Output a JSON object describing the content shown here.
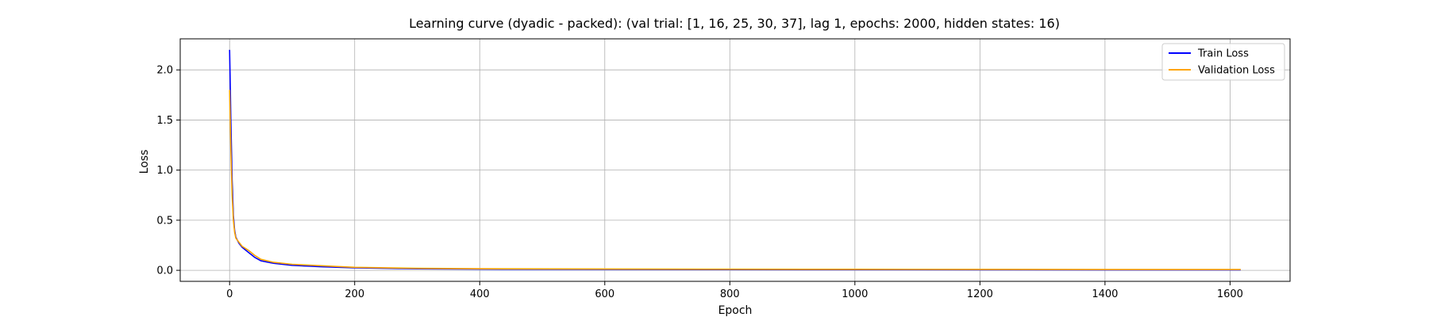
{
  "chart_data": {
    "type": "line",
    "title": "Learning curve (dyadic - packed): (val trial: [1, 16, 25, 30, 37], lag 1, epochs: 2000, hidden states: 16)",
    "xlabel": "Epoch",
    "ylabel": "Loss",
    "xlim": [
      -79,
      1696
    ],
    "ylim": [
      -0.11,
      2.31
    ],
    "xticks": [
      0,
      200,
      400,
      600,
      800,
      1000,
      1200,
      1400,
      1600
    ],
    "yticks": [
      0.0,
      0.5,
      1.0,
      1.5,
      2.0
    ],
    "xtick_labels": [
      "0",
      "200",
      "400",
      "600",
      "800",
      "1000",
      "1200",
      "1400",
      "1600"
    ],
    "ytick_labels": [
      "0.0",
      "0.5",
      "1.0",
      "1.5",
      "2.0"
    ],
    "grid": true,
    "legend_position": "top-right",
    "series": [
      {
        "name": "Train Loss",
        "color": "#0000ff",
        "x": [
          0,
          2,
          4,
          6,
          8,
          10,
          15,
          20,
          30,
          40,
          50,
          70,
          100,
          150,
          200,
          300,
          400,
          600,
          800,
          1000,
          1200,
          1400,
          1617
        ],
        "y": [
          2.2,
          1.5,
          0.9,
          0.55,
          0.4,
          0.33,
          0.27,
          0.23,
          0.18,
          0.13,
          0.095,
          0.07,
          0.05,
          0.035,
          0.025,
          0.015,
          0.012,
          0.009,
          0.007,
          0.006,
          0.005,
          0.004,
          0.004
        ]
      },
      {
        "name": "Validation Loss",
        "color": "#ffa500",
        "x": [
          0,
          2,
          4,
          6,
          8,
          10,
          15,
          20,
          30,
          40,
          50,
          70,
          100,
          150,
          200,
          300,
          400,
          600,
          800,
          1000,
          1200,
          1400,
          1617
        ],
        "y": [
          1.8,
          1.2,
          0.75,
          0.5,
          0.38,
          0.32,
          0.28,
          0.24,
          0.2,
          0.15,
          0.11,
          0.08,
          0.06,
          0.045,
          0.03,
          0.02,
          0.016,
          0.013,
          0.011,
          0.01,
          0.009,
          0.008,
          0.008
        ]
      }
    ]
  }
}
